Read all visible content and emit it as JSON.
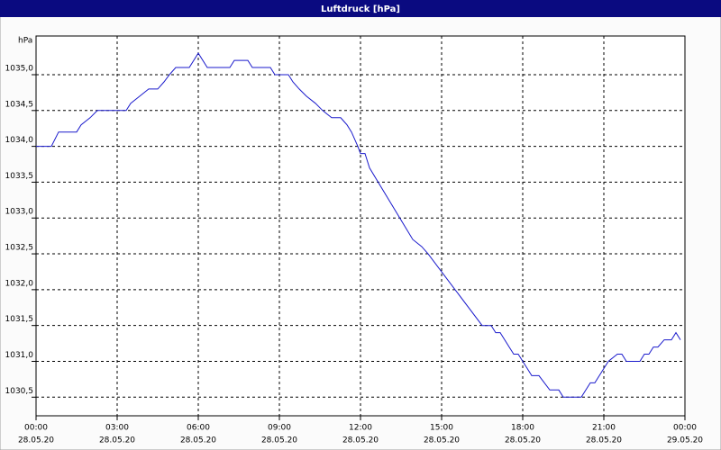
{
  "chart_data": {
    "type": "line",
    "title": "Luftdruck [hPa]",
    "y_label": "hPa",
    "x": [
      "28.05.20 00:00",
      "28.05.20 00:34",
      "28.05.20 00:50",
      "28.05.20 01:30",
      "28.05.20 01:40",
      "28.05.20 02:00",
      "28.05.20 02:16",
      "28.05.20 03:20",
      "28.05.20 03:30",
      "28.05.20 03:50",
      "28.05.20 04:10",
      "28.05.20 04:30",
      "28.05.20 04:44",
      "28.05.20 04:56",
      "28.05.20 05:10",
      "28.05.20 05:40",
      "28.05.20 06:00",
      "28.05.20 06:20",
      "28.05.20 07:10",
      "28.05.20 07:20",
      "28.05.20 07:50",
      "28.05.20 08:00",
      "28.05.20 08:40",
      "28.05.20 08:50",
      "28.05.20 09:20",
      "28.05.20 09:30",
      "28.05.20 09:44",
      "28.05.20 10:00",
      "28.05.20 10:20",
      "28.05.20 10:36",
      "28.05.20 10:56",
      "28.05.20 11:16",
      "28.05.20 11:30",
      "28.05.20 11:40",
      "28.05.20 11:54",
      "28.05.20 12:00",
      "28.05.20 12:10",
      "28.05.20 12:20",
      "28.05.20 13:56",
      "28.05.20 14:16",
      "28.05.20 14:30",
      "28.05.20 15:30",
      "28.05.20 16:30",
      "28.05.20 16:50",
      "28.05.20 17:00",
      "28.05.20 17:10",
      "28.05.20 17:30",
      "28.05.20 17:40",
      "28.05.20 17:50",
      "28.05.20 18:10",
      "28.05.20 18:20",
      "28.05.20 18:36",
      "28.05.20 19:00",
      "28.05.20 19:20",
      "28.05.20 19:30",
      "28.05.20 20:10",
      "28.05.20 20:30",
      "28.05.20 20:40",
      "28.05.20 20:50",
      "28.05.20 21:10",
      "28.05.20 21:30",
      "28.05.20 21:40",
      "28.05.20 21:50",
      "28.05.20 22:20",
      "28.05.20 22:30",
      "28.05.20 22:40",
      "28.05.20 22:50",
      "28.05.20 23:00",
      "28.05.20 23:14",
      "28.05.20 23:30",
      "28.05.20 23:40",
      "28.05.20 23:50"
    ],
    "series": [
      {
        "name": "Luftdruck",
        "color": "#1a1acc",
        "values": [
          1034.0,
          1034.0,
          1034.2,
          1034.2,
          1034.3,
          1034.4,
          1034.5,
          1034.5,
          1034.6,
          1034.7,
          1034.8,
          1034.8,
          1034.9,
          1035.0,
          1035.1,
          1035.1,
          1035.3,
          1035.1,
          1035.1,
          1035.2,
          1035.2,
          1035.1,
          1035.1,
          1035.0,
          1035.0,
          1034.9,
          1034.8,
          1034.7,
          1034.6,
          1034.5,
          1034.4,
          1034.4,
          1034.3,
          1034.2,
          1034.0,
          1033.9,
          1033.9,
          1033.7,
          1032.7,
          1032.6,
          1032.5,
          1032.0,
          1031.5,
          1031.5,
          1031.4,
          1031.4,
          1031.2,
          1031.1,
          1031.1,
          1030.9,
          1030.8,
          1030.8,
          1030.6,
          1030.6,
          1030.5,
          1030.5,
          1030.7,
          1030.7,
          1030.8,
          1031.0,
          1031.1,
          1031.1,
          1031.0,
          1031.0,
          1031.1,
          1031.1,
          1031.2,
          1031.2,
          1031.3,
          1031.3,
          1031.4,
          1031.3
        ]
      }
    ],
    "xlim": [
      "28.05.20 00:00",
      "29.05.20 00:00"
    ],
    "xticks": [
      {
        "value": "28.05.20 00:00",
        "label": [
          "00:00",
          "28.05.20"
        ]
      },
      {
        "value": "28.05.20 03:00",
        "label": [
          "03:00",
          "28.05.20"
        ]
      },
      {
        "value": "28.05.20 06:00",
        "label": [
          "06:00",
          "28.05.20"
        ]
      },
      {
        "value": "28.05.20 09:00",
        "label": [
          "09:00",
          "28.05.20"
        ]
      },
      {
        "value": "28.05.20 12:00",
        "label": [
          "12:00",
          "28.05.20"
        ]
      },
      {
        "value": "28.05.20 15:00",
        "label": [
          "15:00",
          "28.05.20"
        ]
      },
      {
        "value": "28.05.20 18:00",
        "label": [
          "18:00",
          "28.05.20"
        ]
      },
      {
        "value": "28.05.20 21:00",
        "label": [
          "21:00",
          "28.05.20"
        ]
      },
      {
        "value": "29.05.20 00:00",
        "label": [
          "00:00",
          "29.05.20"
        ]
      }
    ],
    "ylim": [
      1030.24,
      1035.54
    ],
    "yticks": [
      {
        "value": 1030.5,
        "label": "1030,5"
      },
      {
        "value": 1031,
        "label": "1031,0"
      },
      {
        "value": 1031.5,
        "label": "1031,5"
      },
      {
        "value": 1032,
        "label": "1032,0"
      },
      {
        "value": 1032.5,
        "label": "1032,5"
      },
      {
        "value": 1033,
        "label": "1033,0"
      },
      {
        "value": 1033.5,
        "label": "1033,5"
      },
      {
        "value": 1034,
        "label": "1034,0"
      },
      {
        "value": 1034.5,
        "label": "1034,5"
      },
      {
        "value": 1035,
        "label": "1035,0"
      }
    ],
    "grid": true
  }
}
